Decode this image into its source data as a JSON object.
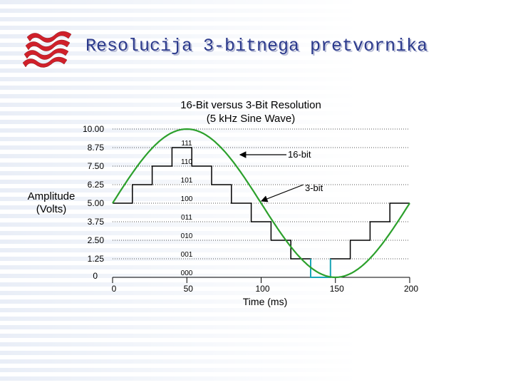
{
  "slide_title": "Resolucija 3-bitnega pretvornika",
  "colors": {
    "sine": "#2ca02c",
    "step": "#000000",
    "step_highlight": "#1aa6b7",
    "title": "#2c3a8c",
    "logo": "#d0202a"
  },
  "chart_data": {
    "type": "line",
    "title": "16-Bit versus 3-Bit Resolution",
    "subtitle": "(5 kHz Sine Wave)",
    "xlabel": "Time (ms)",
    "ylabel": "Amplitude (Volts)",
    "xlim": [
      0,
      200
    ],
    "ylim": [
      0,
      10
    ],
    "x_ticks": [
      "0",
      "50",
      "100",
      "150",
      "200"
    ],
    "y_ticks": [
      "0",
      "1.25",
      "2.50",
      "3.75",
      "5.00",
      "6.25",
      "7.50",
      "8.75",
      "10.00"
    ],
    "level_codes": [
      "000",
      "001",
      "010",
      "011",
      "100",
      "101",
      "110",
      "111"
    ],
    "series": [
      {
        "name": "16-bit",
        "kind": "sine",
        "amplitude": 5,
        "offset": 5,
        "period": 200
      },
      {
        "name": "3-bit",
        "kind": "step",
        "levels": [
          5.0,
          6.25,
          7.5,
          8.75,
          7.5,
          6.25,
          5.0,
          3.75,
          2.5,
          1.25,
          0,
          1.25,
          2.5,
          3.75,
          5.0
        ]
      }
    ],
    "annotations": [
      "16-bit",
      "3-bit"
    ],
    "grid": "horizontal dotted",
    "legend": "none"
  }
}
